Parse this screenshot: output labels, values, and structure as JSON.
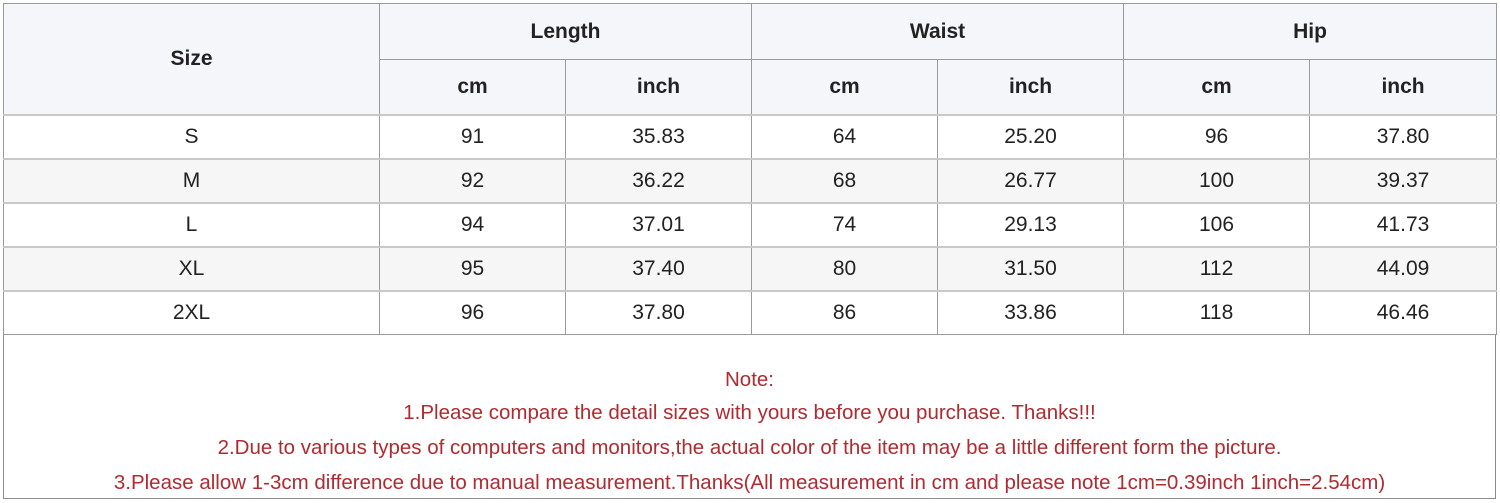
{
  "table": {
    "size_header": "Size",
    "groups": [
      "Length",
      "Waist",
      "Hip"
    ],
    "units": [
      "cm",
      "inch",
      "cm",
      "inch",
      "cm",
      "inch"
    ],
    "rows": [
      [
        "S",
        "91",
        "35.83",
        "64",
        "25.20",
        "96",
        "37.80"
      ],
      [
        "M",
        "92",
        "36.22",
        "68",
        "26.77",
        "100",
        "39.37"
      ],
      [
        "L",
        "94",
        "37.01",
        "74",
        "29.13",
        "106",
        "41.73"
      ],
      [
        "XL",
        "95",
        "37.40",
        "80",
        "31.50",
        "112",
        "44.09"
      ],
      [
        "2XL",
        "96",
        "37.80",
        "86",
        "33.86",
        "118",
        "46.46"
      ]
    ]
  },
  "notes": {
    "title": "Note:",
    "lines": [
      "1.Please compare the detail sizes with yours before you purchase. Thanks!!!",
      "2.Due to various types of computers and monitors,the actual color of the item may be a little different form the picture.",
      "3.Please allow 1-3cm difference due to manual measurement.Thanks(All measurement in cm and please note 1cm=0.39inch 1inch=2.54cm)"
    ],
    "color": "#b02a30"
  }
}
